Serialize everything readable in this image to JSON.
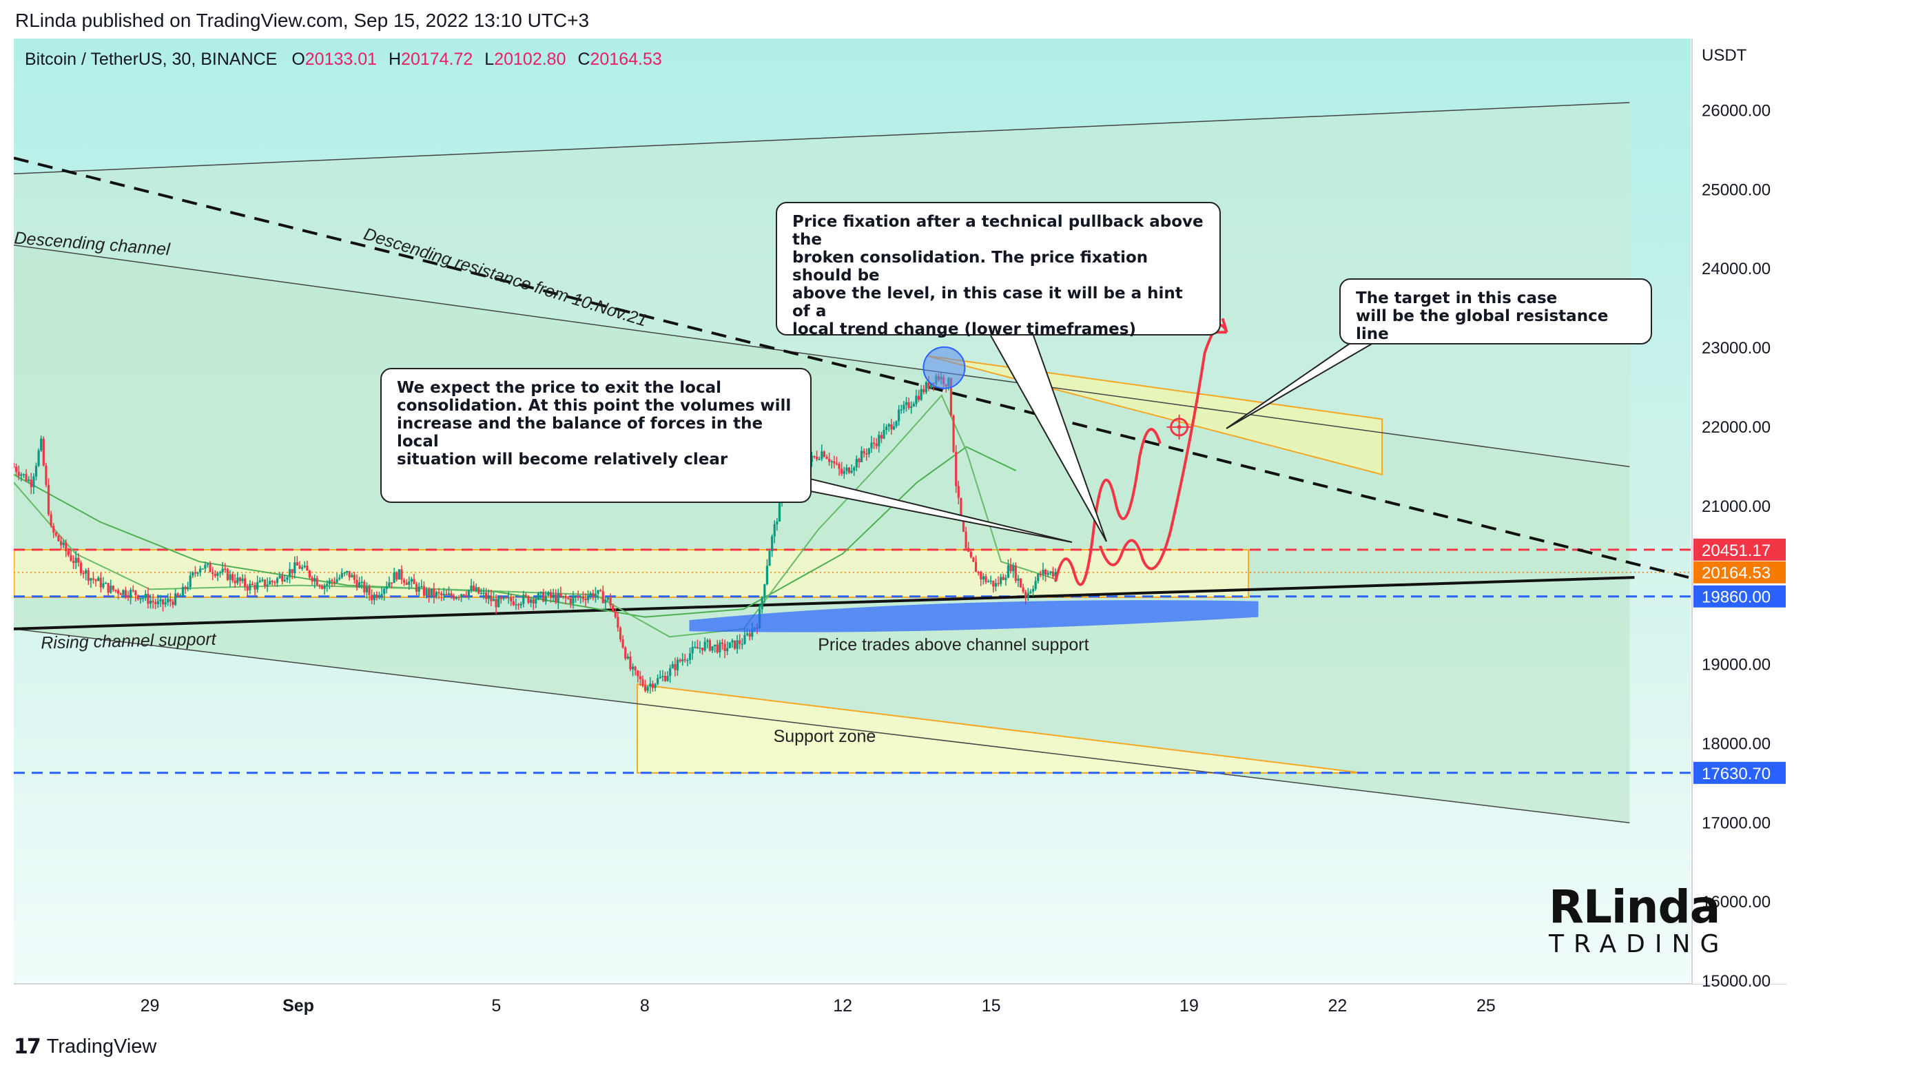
{
  "header": {
    "published_line": "RLinda published on TradingView.com, Sep 15, 2022 13:10 UTC+3"
  },
  "legend": {
    "symbol": "Bitcoin / TetherUS, 30, BINANCE",
    "open_label": "O",
    "open": "20133.01",
    "high_label": "H",
    "high": "20174.72",
    "low_label": "L",
    "low": "20102.80",
    "close_label": "C",
    "close": "20164.53"
  },
  "footer": {
    "brand": "TradingView"
  },
  "callouts": {
    "consolidation": "We expect the price to exit the local\nconsolidation. At this point the volumes will\n increase and the balance of forces in the local\nsituation will become relatively clear",
    "fixation": "Price fixation after a technical pullback above the\nbroken consolidation. The price fixation should be\n above the level, in this case it will be a hint of a\nlocal trend change (lower timeframes)",
    "target": "The target in this case\nwill be the global resistance line"
  },
  "brand_logo": {
    "top": "RLinda",
    "bottom": "TRADING"
  },
  "colors": {
    "up": "#089981",
    "down": "#f23645",
    "legend_values": "#e91e63",
    "dashed_blue": "#2962ff",
    "dashed_red": "#f23645",
    "zone_fill": "#f5f9c8",
    "zone_border": "#f5a623"
  },
  "chart_data": {
    "type": "candlestick",
    "symbol": "Bitcoin / TetherUS",
    "interval": "30",
    "exchange": "BINANCE",
    "currency_label": "USDT",
    "ylim": [
      15000,
      26700
    ],
    "y_ticks": [
      15000,
      16000,
      17000,
      18000,
      19000,
      20000,
      21000,
      22000,
      23000,
      24000,
      25000,
      26000
    ],
    "y_tick_labels": [
      "15000.00",
      "16000.00",
      "17000.00",
      "18000.00",
      "19000.00",
      "",
      "21000.00",
      "22000.00",
      "23000.00",
      "24000.00",
      "25000.00",
      "26000.00"
    ],
    "x_ticks": [
      {
        "label": "29",
        "day": 0
      },
      {
        "label": "Sep",
        "day": 3,
        "bold": true
      },
      {
        "label": "5",
        "day": 7
      },
      {
        "label": "8",
        "day": 10
      },
      {
        "label": "12",
        "day": 14
      },
      {
        "label": "15",
        "day": 17
      },
      {
        "label": "19",
        "day": 21
      },
      {
        "label": "22",
        "day": 24
      },
      {
        "label": "25",
        "day": 27
      }
    ],
    "x_range_days": [
      -2.75,
      32.5
    ],
    "price_path": [
      [
        -2.75,
        21500
      ],
      [
        -2.4,
        21300
      ],
      [
        -2.2,
        21800
      ],
      [
        -2.0,
        20700
      ],
      [
        -1.6,
        20350
      ],
      [
        -1.2,
        20100
      ],
      [
        -0.8,
        19950
      ],
      [
        -0.3,
        19900
      ],
      [
        0.2,
        19750
      ],
      [
        0.6,
        19850
      ],
      [
        1.0,
        20250
      ],
      [
        1.5,
        20150
      ],
      [
        2.0,
        19980
      ],
      [
        2.5,
        20050
      ],
      [
        3.0,
        20250
      ],
      [
        3.5,
        20000
      ],
      [
        4.0,
        20150
      ],
      [
        4.5,
        19850
      ],
      [
        5.0,
        20150
      ],
      [
        5.5,
        19920
      ],
      [
        6.0,
        19850
      ],
      [
        6.5,
        19950
      ],
      [
        7.0,
        19780
      ],
      [
        7.5,
        19820
      ],
      [
        8.0,
        19860
      ],
      [
        8.5,
        19820
      ],
      [
        9.0,
        19900
      ],
      [
        9.3,
        19790
      ],
      [
        9.7,
        18950
      ],
      [
        10.0,
        18720
      ],
      [
        10.4,
        18850
      ],
      [
        10.8,
        19100
      ],
      [
        11.2,
        19250
      ],
      [
        11.6,
        19200
      ],
      [
        12.0,
        19300
      ],
      [
        12.3,
        19550
      ],
      [
        12.5,
        20400
      ],
      [
        12.8,
        21200
      ],
      [
        13.2,
        21500
      ],
      [
        13.6,
        21700
      ],
      [
        14.0,
        21400
      ],
      [
        14.4,
        21650
      ],
      [
        14.8,
        21900
      ],
      [
        15.2,
        22200
      ],
      [
        15.6,
        22450
      ],
      [
        15.9,
        22650
      ],
      [
        16.15,
        22550
      ],
      [
        16.3,
        21200
      ],
      [
        16.5,
        20400
      ],
      [
        16.8,
        20100
      ],
      [
        17.1,
        20000
      ],
      [
        17.4,
        20250
      ],
      [
        17.7,
        19870
      ],
      [
        18.0,
        20150
      ],
      [
        18.3,
        20164
      ]
    ],
    "ma_fast_path": [
      [
        -2.75,
        21300
      ],
      [
        -1.5,
        20400
      ],
      [
        0,
        19950
      ],
      [
        3,
        20000
      ],
      [
        6,
        19950
      ],
      [
        9,
        19880
      ],
      [
        10.5,
        19350
      ],
      [
        12,
        19450
      ],
      [
        13.5,
        20700
      ],
      [
        15,
        21700
      ],
      [
        16,
        22400
      ],
      [
        16.5,
        21700
      ],
      [
        17.2,
        20300
      ],
      [
        18.3,
        20080
      ]
    ],
    "ma_slow_path": [
      [
        -2.75,
        21400
      ],
      [
        -1,
        20800
      ],
      [
        1,
        20300
      ],
      [
        4,
        20000
      ],
      [
        7,
        19920
      ],
      [
        10,
        19600
      ],
      [
        12,
        19700
      ],
      [
        14,
        20400
      ],
      [
        15.5,
        21300
      ],
      [
        16.5,
        21750
      ],
      [
        17.5,
        21450
      ]
    ],
    "levels": [
      {
        "price": 20451.17,
        "style": "dashed",
        "color": "#f23645",
        "label": "20451.17"
      },
      {
        "price": 19860.0,
        "style": "dashed",
        "color": "#2962ff",
        "label": "19860.00"
      },
      {
        "price": 17630.7,
        "style": "dashed",
        "color": "#2962ff",
        "label": "17630.70"
      }
    ],
    "current_price": {
      "price": 20164.53,
      "label": "20164.53",
      "color": "#f57c00"
    },
    "channel": {
      "upper": [
        [
          -2.75,
          25200
        ],
        [
          29.9,
          26100
        ]
      ],
      "middle": [
        [
          -2.75,
          24300
        ],
        [
          29.9,
          21500
        ]
      ],
      "lower": [
        [
          -2.75,
          19450
        ],
        [
          29.9,
          17000
        ]
      ]
    },
    "descending_resistance": [
      [
        -2.75,
        25400
      ],
      [
        31.1,
        20100
      ]
    ],
    "rising_support": [
      [
        -2.75,
        19450
      ],
      [
        30.0,
        20100
      ]
    ],
    "consolidation_box": {
      "x0": -2.75,
      "x1": 22.2,
      "y0": 19850,
      "y1": 20450
    },
    "support_zone": {
      "x0": 9.85,
      "x1": 24.5,
      "y_top": 18750,
      "y_bottom": 17630
    },
    "target_zone": {
      "x0": 15.7,
      "x1": 24.9,
      "y_top_left": 22900,
      "y_top_right": 22100,
      "y_bottom_left": 22900,
      "y_bottom_right": 21400
    },
    "annotations": [
      {
        "text": "Descending channel",
        "day": -2.75,
        "price": 24320,
        "angle": 4.3
      },
      {
        "text": "Descending resistance from 10.Nov.21",
        "day": 4.3,
        "price": 24380,
        "angle": 17.3
      },
      {
        "text": "Rising channel support",
        "day": -2.2,
        "price": 19200,
        "angle": -1.3
      },
      {
        "text": "Support zone",
        "day": 12.6,
        "price": 18020,
        "angle": 0
      },
      {
        "text": "Price trades above channel support",
        "day": 13.5,
        "price": 19180,
        "angle": 0
      }
    ]
  }
}
